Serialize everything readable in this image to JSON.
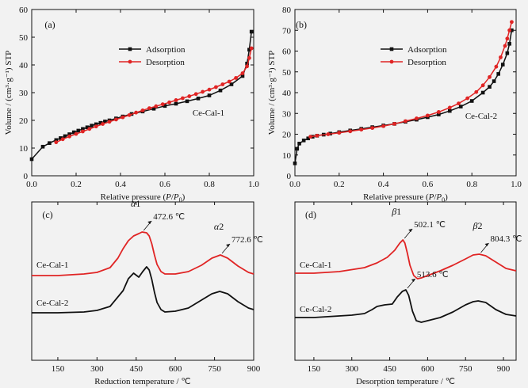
{
  "chart_data": [
    {
      "type": "line",
      "panel": "(a)",
      "sample": "Ce-Cal-1",
      "xlabel_parts": [
        "Relative pressure (",
        "P",
        "/",
        "P",
        "0",
        ")"
      ],
      "ylabel": "Volume / (cm³·g⁻¹) STP",
      "xlim": [
        0,
        1.0
      ],
      "ylim": [
        0,
        60
      ],
      "xticks": [
        0.0,
        0.2,
        0.4,
        0.6,
        0.8,
        1.0
      ],
      "yticks": [
        0,
        10,
        20,
        30,
        40,
        50,
        60
      ],
      "legend": "upper-left",
      "series": [
        {
          "name": "Adsorption",
          "color": "#111111",
          "marker": "square",
          "x": [
            0.0,
            0.05,
            0.08,
            0.11,
            0.13,
            0.15,
            0.17,
            0.19,
            0.21,
            0.23,
            0.25,
            0.27,
            0.29,
            0.31,
            0.33,
            0.35,
            0.38,
            0.41,
            0.45,
            0.5,
            0.55,
            0.6,
            0.65,
            0.7,
            0.75,
            0.8,
            0.85,
            0.9,
            0.95,
            0.97,
            0.98,
            0.99
          ],
          "y": [
            6.0,
            10.5,
            11.8,
            12.9,
            13.6,
            14.3,
            15.0,
            15.7,
            16.3,
            16.9,
            17.5,
            18.1,
            18.6,
            19.1,
            19.6,
            20.0,
            20.7,
            21.4,
            22.3,
            23.2,
            24.2,
            25.2,
            26.0,
            26.9,
            27.9,
            29.0,
            30.8,
            33.0,
            36.0,
            40.5,
            45.5,
            52.0
          ]
        },
        {
          "name": "Desorption",
          "color": "#e02424",
          "marker": "circle",
          "x": [
            0.99,
            0.98,
            0.97,
            0.95,
            0.92,
            0.89,
            0.86,
            0.83,
            0.8,
            0.77,
            0.74,
            0.71,
            0.68,
            0.65,
            0.62,
            0.59,
            0.56,
            0.53,
            0.5,
            0.47,
            0.44,
            0.41,
            0.38,
            0.35,
            0.32,
            0.29,
            0.26,
            0.23,
            0.2,
            0.17,
            0.14,
            0.11
          ],
          "y": [
            46.0,
            42.5,
            39.5,
            37.0,
            35.3,
            34.0,
            33.0,
            32.0,
            31.1,
            30.3,
            29.5,
            28.7,
            28.0,
            27.3,
            26.5,
            25.8,
            25.1,
            24.4,
            23.6,
            22.8,
            21.9,
            21.1,
            20.3,
            19.5,
            18.7,
            17.8,
            16.9,
            16.0,
            15.1,
            14.2,
            13.2,
            12.1
          ]
        }
      ]
    },
    {
      "type": "line",
      "panel": "(b)",
      "sample": "Ce-Cal-2",
      "xlabel_parts": [
        "Relative pressure (",
        "P",
        "/",
        "P",
        "0",
        ")"
      ],
      "ylabel": "Volume / (cm³·g⁻¹) STP",
      "xlim": [
        0,
        1.0
      ],
      "ylim": [
        0,
        80
      ],
      "xticks": [
        0.0,
        0.2,
        0.4,
        0.6,
        0.8,
        1.0
      ],
      "yticks": [
        0,
        10,
        20,
        30,
        40,
        50,
        60,
        70,
        80
      ],
      "legend": "upper-left",
      "series": [
        {
          "name": "Adsorption",
          "color": "#111111",
          "marker": "square",
          "x": [
            0.0,
            0.01,
            0.02,
            0.04,
            0.06,
            0.08,
            0.1,
            0.13,
            0.16,
            0.2,
            0.25,
            0.3,
            0.35,
            0.4,
            0.45,
            0.5,
            0.55,
            0.6,
            0.65,
            0.7,
            0.75,
            0.8,
            0.85,
            0.88,
            0.9,
            0.92,
            0.94,
            0.96,
            0.97,
            0.98
          ],
          "y": [
            6.0,
            13.0,
            15.5,
            17.0,
            18.0,
            18.8,
            19.3,
            19.8,
            20.3,
            21.0,
            21.8,
            22.6,
            23.4,
            24.2,
            25.0,
            26.0,
            27.0,
            28.2,
            29.5,
            31.2,
            33.3,
            36.0,
            40.0,
            42.8,
            45.5,
            49.0,
            53.5,
            59.0,
            63.5,
            70.0
          ]
        },
        {
          "name": "Desorption",
          "color": "#e02424",
          "marker": "circle",
          "x": [
            0.98,
            0.97,
            0.96,
            0.95,
            0.93,
            0.91,
            0.88,
            0.85,
            0.82,
            0.78,
            0.74,
            0.7,
            0.65,
            0.6,
            0.55,
            0.5,
            0.45,
            0.4,
            0.35,
            0.3,
            0.25,
            0.2,
            0.15,
            0.1,
            0.07
          ],
          "y": [
            74.0,
            70.0,
            66.0,
            62.5,
            57.0,
            52.5,
            47.5,
            43.5,
            40.3,
            37.3,
            34.8,
            32.8,
            30.7,
            29.0,
            27.6,
            26.3,
            25.0,
            23.9,
            23.0,
            22.2,
            21.4,
            20.7,
            20.0,
            19.3,
            18.8
          ]
        }
      ]
    },
    {
      "type": "line",
      "panel": "(c)",
      "xlabel": "Reduction temperature / ℃",
      "xlim": [
        50,
        900
      ],
      "xticks": [
        150,
        300,
        450,
        600,
        750,
        900
      ],
      "yaxis_shown": false,
      "curves": [
        {
          "name": "Ce-Cal-1",
          "color": "#e02424",
          "x": [
            50,
            150,
            250,
            300,
            350,
            380,
            400,
            420,
            440,
            460,
            472.6,
            490,
            500,
            510,
            520,
            530,
            545,
            560,
            600,
            650,
            700,
            740,
            772.6,
            800,
            840,
            880,
            900
          ],
          "y": [
            0.0,
            0.0,
            0.02,
            0.04,
            0.1,
            0.22,
            0.34,
            0.44,
            0.5,
            0.53,
            0.55,
            0.54,
            0.5,
            0.4,
            0.26,
            0.14,
            0.05,
            0.02,
            0.02,
            0.05,
            0.13,
            0.22,
            0.26,
            0.22,
            0.12,
            0.04,
            0.02
          ]
        },
        {
          "name": "Ce-Cal-2",
          "color": "#111111",
          "x": [
            50,
            150,
            250,
            300,
            350,
            400,
            420,
            440,
            460,
            475,
            490,
            500,
            510,
            520,
            530,
            545,
            560,
            600,
            650,
            700,
            740,
            770,
            800,
            840,
            880,
            900
          ],
          "y": [
            0.0,
            0.0,
            0.01,
            0.03,
            0.08,
            0.28,
            0.43,
            0.5,
            0.45,
            0.52,
            0.58,
            0.54,
            0.42,
            0.26,
            0.13,
            0.04,
            0.01,
            0.02,
            0.06,
            0.16,
            0.24,
            0.27,
            0.24,
            0.14,
            0.06,
            0.04
          ]
        }
      ],
      "annotations": [
        {
          "greek": "α",
          "sub": "1",
          "value": "472.6 ℃",
          "x": 472.6
        },
        {
          "greek": "α",
          "sub": "2",
          "value": "772.6 ℃",
          "x": 772.6
        }
      ]
    },
    {
      "type": "line",
      "panel": "(d)",
      "xlabel": "Desorption temperature / ℃",
      "xlim": [
        75,
        950
      ],
      "xticks": [
        150,
        300,
        450,
        600,
        750,
        900
      ],
      "yaxis_shown": false,
      "curves": [
        {
          "name": "Ce-Cal-1",
          "color": "#e02424",
          "x": [
            75,
            150,
            250,
            350,
            400,
            440,
            470,
            490,
            502.1,
            510,
            520,
            530,
            545,
            560,
            575,
            600,
            650,
            700,
            750,
            780,
            804.3,
            830,
            870,
            910,
            950
          ],
          "y": [
            0.0,
            0.0,
            0.02,
            0.07,
            0.13,
            0.2,
            0.29,
            0.38,
            0.42,
            0.38,
            0.25,
            0.1,
            -0.03,
            -0.07,
            -0.06,
            -0.03,
            0.03,
            0.1,
            0.18,
            0.23,
            0.24,
            0.22,
            0.14,
            0.06,
            0.03
          ]
        },
        {
          "name": "Ce-Cal-2",
          "color": "#111111",
          "x": [
            75,
            150,
            250,
            300,
            350,
            380,
            400,
            430,
            460,
            480,
            500,
            513.6,
            525,
            540,
            555,
            575,
            600,
            650,
            700,
            750,
            780,
            800,
            830,
            870,
            910,
            950
          ],
          "y": [
            0.0,
            0.0,
            0.02,
            0.03,
            0.05,
            0.1,
            0.14,
            0.16,
            0.17,
            0.26,
            0.33,
            0.35,
            0.28,
            0.08,
            -0.04,
            -0.06,
            -0.04,
            0.0,
            0.07,
            0.16,
            0.2,
            0.21,
            0.19,
            0.1,
            0.04,
            0.02
          ]
        }
      ],
      "annotations": [
        {
          "greek": "β",
          "sub": "1",
          "value": "502.1 ℃",
          "x": 502.1
        },
        {
          "greek": "β",
          "sub": "2",
          "value": "804.3 ℃",
          "x": 804.3
        },
        {
          "greek": "",
          "sub": "",
          "value": "513.6 ℃",
          "x": 513.6
        }
      ]
    }
  ]
}
